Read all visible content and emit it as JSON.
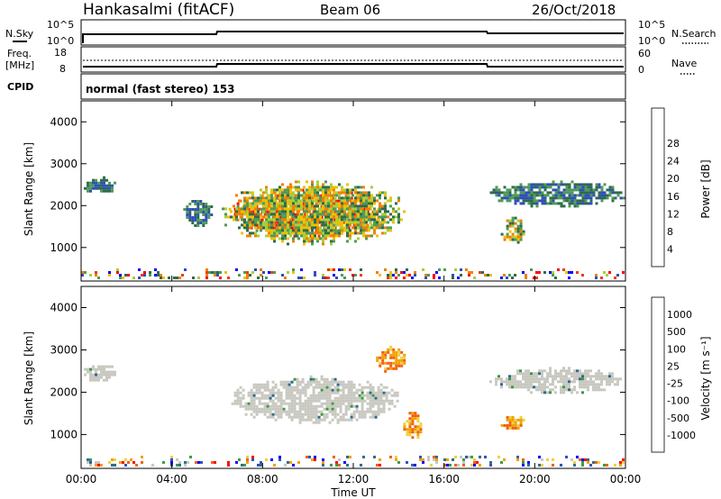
{
  "header": {
    "station": "Hankasalmi (fitACF)",
    "beam": "Beam 06",
    "date": "26/Oct/2018"
  },
  "summary": {
    "nsky_label": "N.Sky",
    "nsky_ticks": [
      "10^5",
      "10^0"
    ],
    "nsearch_label": "N.Search",
    "nsearch_ticks": [
      "10^5",
      "10^0"
    ],
    "freq_label_1": "Freq.",
    "freq_label_2": "[MHz]",
    "freq_ticks": [
      "18",
      "8"
    ],
    "nave_label": "Nave",
    "nave_ticks": [
      "60",
      "0"
    ],
    "cpid_label": "CPID",
    "cpid_text": "normal (fast stereo) 153"
  },
  "colors": {
    "power_scale": [
      "#0000ff",
      "#2f4fb8",
      "#2e6b4a",
      "#4f9a5a",
      "#a8cf3a",
      "#f0c000",
      "#f08000",
      "#e84010",
      "#ff0000"
    ],
    "velocity_scale": [
      "#ff0000",
      "#f06010",
      "#f0a000",
      "#f0d040",
      "#c8c8c0",
      "#3a9a40",
      "#2f6a8a",
      "#2f4fb8",
      "#0000ff"
    ],
    "ground_scatter": "#c8c8c0"
  },
  "chart_data": [
    {
      "type": "heatmap",
      "panel": "power",
      "ylabel": "Slant Range [km]",
      "ylim": [
        200,
        4500
      ],
      "yticks": [
        "1000",
        "2000",
        "3000",
        "4000"
      ],
      "xlim": [
        0,
        24
      ],
      "colorbar_label": "Power [dB]",
      "colorbar_ticks": [
        "4",
        "8",
        "12",
        "16",
        "20",
        "24",
        "28"
      ],
      "regions": [
        {
          "t0": 6.5,
          "t1": 13.3,
          "r0": 1300,
          "r1": 2400,
          "level": "high"
        },
        {
          "t0": 6.2,
          "t1": 14.2,
          "r0": 1100,
          "r1": 2600,
          "level": "mid"
        },
        {
          "t0": 0.0,
          "t1": 1.5,
          "r0": 2300,
          "r1": 2700,
          "level": "low"
        },
        {
          "t0": 4.5,
          "t1": 5.8,
          "r0": 1500,
          "r1": 2200,
          "level": "low"
        },
        {
          "t0": 17.9,
          "t1": 24.0,
          "r0": 2000,
          "r1": 2600,
          "level": "low"
        },
        {
          "t0": 18.5,
          "t1": 19.5,
          "r0": 1100,
          "r1": 1800,
          "level": "mid"
        },
        {
          "t0": 0.0,
          "t1": 24.0,
          "r0": 250,
          "r1": 500,
          "level": "noise"
        }
      ]
    },
    {
      "type": "heatmap",
      "panel": "velocity",
      "xlabel": "Time UT",
      "ylabel": "Slant Range [km]",
      "ylim": [
        200,
        4500
      ],
      "yticks": [
        "1000",
        "2000",
        "3000",
        "4000"
      ],
      "xlim": [
        0,
        24
      ],
      "xticks": [
        "00:00",
        "04:00",
        "08:00",
        "12:00",
        "16:00",
        "20:00",
        "00:00"
      ],
      "colorbar_label": "Velocity [m s⁻¹]",
      "colorbar_ticks": [
        "1000",
        "500",
        "100",
        "25",
        "-25",
        "-100",
        "-500",
        "-1000"
      ],
      "regions": [
        {
          "t0": 6.5,
          "t1": 14.0,
          "r0": 1300,
          "r1": 2400,
          "level": "ground"
        },
        {
          "t0": 13.0,
          "t1": 14.3,
          "r0": 2500,
          "r1": 3100,
          "level": "neg"
        },
        {
          "t0": 14.2,
          "t1": 15.0,
          "r0": 900,
          "r1": 1600,
          "level": "neg"
        },
        {
          "t0": 0.0,
          "t1": 1.5,
          "r0": 2300,
          "r1": 2700,
          "level": "ground"
        },
        {
          "t0": 18.0,
          "t1": 24.0,
          "r0": 2000,
          "r1": 2600,
          "level": "ground"
        },
        {
          "t0": 18.5,
          "t1": 19.5,
          "r0": 1100,
          "r1": 1500,
          "level": "neg"
        },
        {
          "t0": 0.0,
          "t1": 24.0,
          "r0": 250,
          "r1": 500,
          "level": "noise"
        }
      ]
    }
  ]
}
